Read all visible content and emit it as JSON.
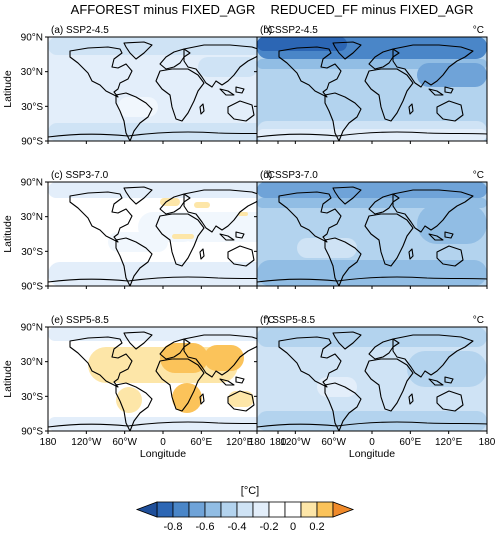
{
  "chart_data": {
    "type": "heatmap",
    "column_titles": [
      "AFFOREST minus FIXED_AGR",
      "REDUCED_FF minus FIXED_AGR"
    ],
    "unit_label": "°C",
    "ylabel": "Latitude",
    "xlabel": "Longitude",
    "lat_ticks": [
      "90°N",
      "30°N",
      "30°S",
      "90°S"
    ],
    "lon_ticks": [
      "180",
      "120°W",
      "60°W",
      "0",
      "60°E",
      "120°E",
      "180"
    ],
    "panels": [
      {
        "label": "(a) SSP2-4.5",
        "scenario": "SSP2-4.5",
        "experiment": "AFFOREST minus FIXED_AGR"
      },
      {
        "label": "(b) SSP2-4.5",
        "scenario": "SSP2-4.5",
        "experiment": "REDUCED_FF minus FIXED_AGR"
      },
      {
        "label": "(c) SSP3-7.0",
        "scenario": "SSP3-7.0",
        "experiment": "AFFOREST minus FIXED_AGR"
      },
      {
        "label": "(d) SSP3-7.0",
        "scenario": "SSP3-7.0",
        "experiment": "REDUCED_FF minus FIXED_AGR"
      },
      {
        "label": "(e) SSP5-8.5",
        "scenario": "SSP5-8.5",
        "experiment": "AFFOREST minus FIXED_AGR"
      },
      {
        "label": "(f) SSP5-8.5",
        "scenario": "SSP5-8.5",
        "experiment": "REDUCED_FF minus FIXED_AGR"
      }
    ],
    "colorbar": {
      "title": "[°C]",
      "tick_labels": [
        "-0.8",
        "-0.6",
        "-0.4",
        "-0.2",
        "0",
        "0.2"
      ],
      "levels": [
        -0.9,
        -0.8,
        -0.7,
        -0.6,
        -0.5,
        -0.4,
        -0.3,
        -0.2,
        -0.1,
        0.0,
        0.1,
        0.2,
        0.3
      ],
      "colors": [
        "#2c66b4",
        "#4a86c8",
        "#6fa3d8",
        "#91bde4",
        "#b3d3ee",
        "#cfe3f5",
        "#e3eefa",
        "#f1f7fd",
        "#ffffff",
        "#ffffff",
        "#fde6a8",
        "#fbc35a",
        "#f5a623",
        "#e8761b"
      ],
      "extend": "both"
    }
  }
}
